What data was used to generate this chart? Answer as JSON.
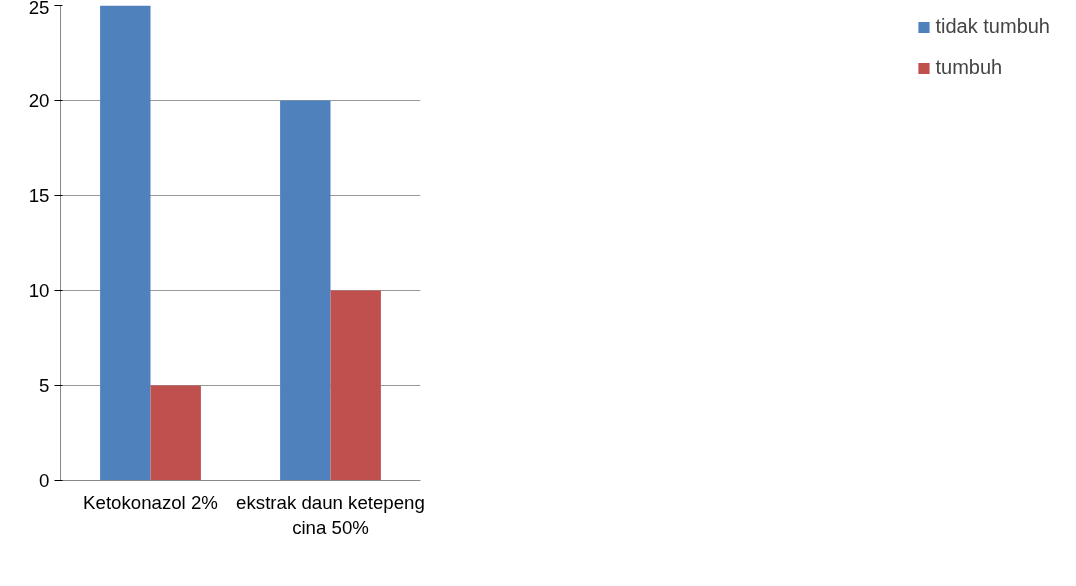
{
  "chart_data": {
    "type": "bar",
    "categories": [
      "Ketokonazol 2%",
      "ekstrak daun ketepeng cina 50%"
    ],
    "series": [
      {
        "name": "tidak tumbuh",
        "color": "#4f81bd",
        "values": [
          25,
          20
        ]
      },
      {
        "name": "tumbuh",
        "color": "#c0504d",
        "values": [
          5,
          10
        ]
      }
    ],
    "ylim": [
      0,
      25
    ],
    "yticks": [
      0,
      5,
      10,
      15,
      20,
      25
    ],
    "grid": "y",
    "legend": "right"
  }
}
